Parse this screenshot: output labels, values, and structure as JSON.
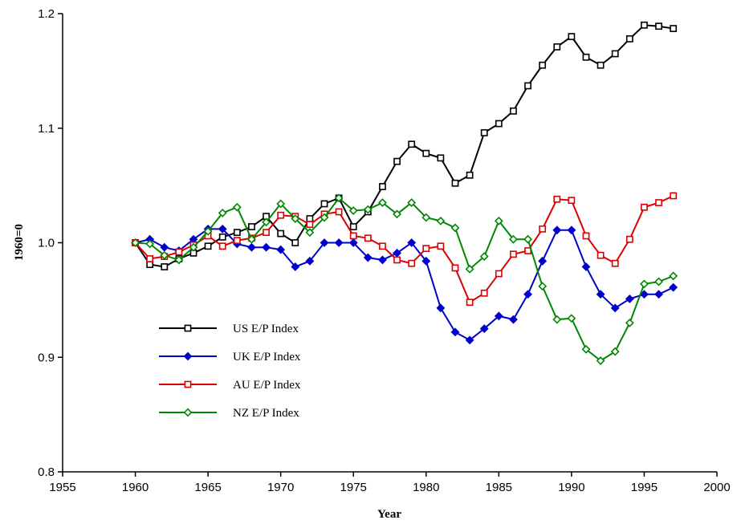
{
  "chart_data": {
    "type": "line",
    "xlabel": "Year",
    "ylabel": "1960=0",
    "x": [
      1960,
      1961,
      1962,
      1963,
      1964,
      1965,
      1966,
      1967,
      1968,
      1969,
      1970,
      1971,
      1972,
      1973,
      1974,
      1975,
      1976,
      1977,
      1978,
      1979,
      1980,
      1981,
      1982,
      1983,
      1984,
      1985,
      1986,
      1987,
      1988,
      1989,
      1990,
      1991,
      1992,
      1993,
      1994,
      1995,
      1996,
      1997
    ],
    "series": [
      {
        "name": "US E/P Index",
        "color": "#000000",
        "marker": "square",
        "values": [
          1.0,
          0.981,
          0.979,
          0.986,
          0.991,
          0.997,
          1.005,
          1.009,
          1.014,
          1.023,
          1.008,
          1.0,
          1.021,
          1.034,
          1.039,
          1.014,
          1.027,
          1.049,
          1.071,
          1.086,
          1.078,
          1.074,
          1.052,
          1.059,
          1.096,
          1.104,
          1.115,
          1.137,
          1.155,
          1.171,
          1.18,
          1.162,
          1.155,
          1.165,
          1.178,
          1.19,
          1.189,
          1.187
        ]
      },
      {
        "name": "UK E/P Index",
        "color": "#0000cc",
        "marker": "diamond-filled",
        "values": [
          1.0,
          1.003,
          0.996,
          0.993,
          1.003,
          1.012,
          1.012,
          0.999,
          0.996,
          0.996,
          0.994,
          0.979,
          0.984,
          1.0,
          1.0,
          1.0,
          0.987,
          0.985,
          0.991,
          1.0,
          0.984,
          0.943,
          0.922,
          0.915,
          0.925,
          0.936,
          0.933,
          0.955,
          0.984,
          1.011,
          1.011,
          0.979,
          0.955,
          0.943,
          0.951,
          0.955,
          0.955,
          0.961
        ]
      },
      {
        "name": "AU E/P Index",
        "color": "#dd0000",
        "marker": "square",
        "values": [
          1.0,
          0.986,
          0.988,
          0.992,
          0.998,
          1.006,
          0.997,
          1.002,
          1.004,
          1.009,
          1.024,
          1.023,
          1.016,
          1.025,
          1.027,
          1.006,
          1.004,
          0.997,
          0.985,
          0.982,
          0.995,
          0.997,
          0.978,
          0.948,
          0.956,
          0.973,
          0.99,
          0.993,
          1.012,
          1.038,
          1.037,
          1.006,
          0.989,
          0.982,
          1.003,
          1.031,
          1.035,
          1.041
        ]
      },
      {
        "name": "NZ E/P Index",
        "color": "#008800",
        "marker": "diamond",
        "values": [
          1.0,
          0.999,
          0.989,
          0.985,
          0.996,
          1.01,
          1.026,
          1.031,
          1.003,
          1.018,
          1.034,
          1.021,
          1.009,
          1.022,
          1.039,
          1.028,
          1.029,
          1.035,
          1.025,
          1.035,
          1.022,
          1.019,
          1.013,
          0.977,
          0.988,
          1.019,
          1.003,
          1.003,
          0.962,
          0.933,
          0.934,
          0.907,
          0.897,
          0.905,
          0.93,
          0.964,
          0.966,
          0.971
        ]
      }
    ],
    "xlim": [
      1955,
      2000
    ],
    "xticks": [
      1955,
      1960,
      1965,
      1970,
      1975,
      1980,
      1985,
      1990,
      1995,
      2000
    ],
    "ylim": [
      0.8,
      1.2
    ],
    "yticks": [
      0.8,
      0.9,
      {
        "value": 1,
        "label": "1.0"
      },
      1.1,
      1.2
    ],
    "grid": false,
    "legend": "center-left"
  }
}
